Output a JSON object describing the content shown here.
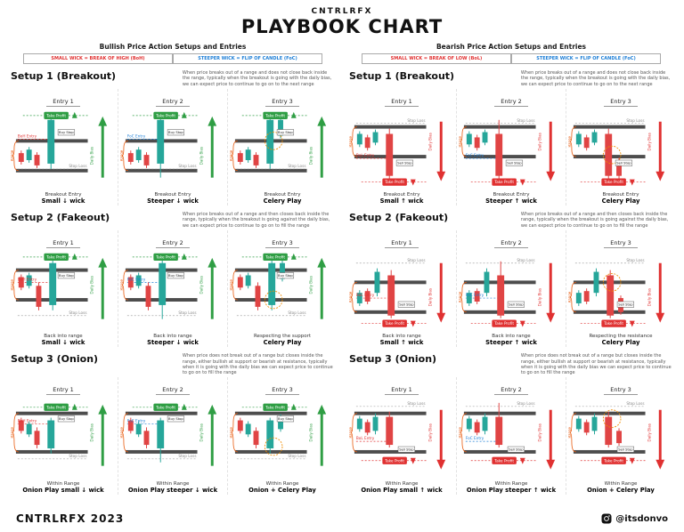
{
  "header": {
    "brand": "CNTRLRFX",
    "title": "PLAYBOOK CHART"
  },
  "footer": {
    "brand_year": "CNTRLRFX 2023",
    "handle": "@itsdonvo",
    "instagram_icon": "instagram"
  },
  "colors": {
    "bull_candle": "#26a69a",
    "bear_candle": "#e04444",
    "bull_accent": "#2f9e44",
    "bear_accent": "#e03131",
    "range_bar": "#4d4d4d",
    "range_label": "#e8590c",
    "foc_blue": "#1c7ed6",
    "stop_loss_gray": "#888888",
    "celery_orange": "#f08c00"
  },
  "columns": [
    {
      "id": "bullish",
      "title": "Bullish Price Action Setups and Entries",
      "legend": [
        {
          "text": "SMALL WICK = BREAK OF HIGH (BoH)",
          "color": "#e03131"
        },
        {
          "text": "STEEPER WICK = FLIP OF CANDLE (FoC)",
          "color": "#1c7ed6"
        }
      ],
      "setups": [
        {
          "title": "Setup 1 (Breakout)",
          "description": "When price breaks out of a range and does not close back inside the range, typically when the breakout is going with the daily bias, we can expect price to continue to go on to the next range",
          "entries": [
            {
              "label": "Entry 1",
              "variant": "small",
              "caption_top": "Breakout Entry",
              "caption_bottom": "Small ↓ wick",
              "annotations": {
                "take_profit": "Take Profit",
                "stop_loss": "Stop Loss",
                "entry": "BoH Entry",
                "entry_color": "#e03131",
                "stop_order": "Buy Stop",
                "range": "Range",
                "bias": "Daily Bias"
              }
            },
            {
              "label": "Entry 2",
              "variant": "steep",
              "caption_top": "Breakout Entry",
              "caption_bottom": "Steeper ↓ wick",
              "annotations": {
                "take_profit": "Take Profit",
                "stop_loss": "Stop Loss",
                "entry": "FoC Entry",
                "entry_color": "#1c7ed6",
                "stop_order": "Buy Stop",
                "range": "Range",
                "bias": "Daily Bias"
              }
            },
            {
              "label": "Entry 3",
              "variant": "celery",
              "caption_top": "Breakout Entry",
              "caption_bottom": "Celery Play",
              "annotations": {
                "take_profit": "Take Profit",
                "stop_loss": "Stop Loss",
                "entry": "",
                "entry_color": "",
                "stop_order": "Buy Stop",
                "range": "Range",
                "bias": "Daily Bias"
              }
            }
          ]
        },
        {
          "title": "Setup 2 (Fakeout)",
          "description": "When price breaks out of a range and then closes back inside the range, typically when the breakout is going against the daily bias, we can expect price to continue to go on to fill the range",
          "entries": [
            {
              "label": "Entry 1",
              "variant": "small",
              "caption_top": "Back into range",
              "caption_bottom": "Small ↓ wick",
              "annotations": {
                "take_profit": "Take Profit",
                "stop_loss": "Stop Loss",
                "entry": "BoH Entry",
                "entry_color": "#e03131",
                "stop_order": "Buy Stop",
                "range": "Range",
                "bias": "Daily Bias"
              }
            },
            {
              "label": "Entry 2",
              "variant": "steep",
              "caption_top": "Back into range",
              "caption_bottom": "Steeper ↓ wick",
              "annotations": {
                "take_profit": "Take Profit",
                "stop_loss": "Stop Loss",
                "entry": "FoC Entry",
                "entry_color": "#1c7ed6",
                "stop_order": "Buy Stop",
                "range": "Range",
                "bias": "Daily Bias"
              }
            },
            {
              "label": "Entry 3",
              "variant": "celery",
              "caption_top": "Respecting the support",
              "caption_bottom": "Celery Play",
              "annotations": {
                "take_profit": "Take Profit",
                "stop_loss": "Stop Loss",
                "entry": "",
                "entry_color": "",
                "stop_order": "Buy Stop",
                "range": "Range",
                "bias": "Daily Bias"
              }
            }
          ]
        },
        {
          "title": "Setup 3 (Onion)",
          "description": "When price does not break out of a range but closes inside the range, either bullish at support or bearish at resistance, typically when it is going with the daily bias we can expect price to continue to go on to fill the range",
          "entries": [
            {
              "label": "Entry 1",
              "variant": "small",
              "caption_top": "Within Range",
              "caption_bottom": "Onion Play small ↓ wick",
              "annotations": {
                "take_profit": "Take Profit",
                "stop_loss": "Stop Loss",
                "entry": "BoH Entry",
                "entry_color": "#e03131",
                "stop_order": "Buy Stop",
                "range": "Range",
                "bias": "Daily Bias"
              }
            },
            {
              "label": "Entry 2",
              "variant": "steep",
              "caption_top": "Within Range",
              "caption_bottom": "Onion Play steeper ↓ wick",
              "annotations": {
                "take_profit": "Take Profit",
                "stop_loss": "Stop Loss",
                "entry": "FoC Entry",
                "entry_color": "#1c7ed6",
                "stop_order": "Buy Stop",
                "range": "Range",
                "bias": "Daily Bias"
              }
            },
            {
              "label": "Entry 3",
              "variant": "celery",
              "caption_top": "Within Range",
              "caption_bottom": "Onion + Celery Play",
              "annotations": {
                "take_profit": "Take Profit",
                "stop_loss": "Stop Loss",
                "entry": "",
                "entry_color": "",
                "stop_order": "Buy Stop",
                "range": "Range",
                "bias": "Daily Bias"
              }
            }
          ]
        }
      ]
    },
    {
      "id": "bearish",
      "title": "Bearish Price Action Setups and Entries",
      "legend": [
        {
          "text": "SMALL WICK = BREAK OF LOW (BoL)",
          "color": "#e03131"
        },
        {
          "text": "STEEPER WICK = FLIP OF CANDLE (FoC)",
          "color": "#1c7ed6"
        }
      ],
      "setups": [
        {
          "title": "Setup 1 (Breakout)",
          "description": "When price breaks out of a range and does not close back inside the range, typically when the breakout is going with the daily bias, we can expect price to continue to go on to the next range",
          "entries": [
            {
              "label": "Entry 1",
              "variant": "small",
              "caption_top": "Breakout Entry",
              "caption_bottom": "Small ↑ wick",
              "annotations": {
                "take_profit": "Take Profit",
                "stop_loss": "Stop Loss",
                "entry": "BoL Entry",
                "entry_color": "#e03131",
                "stop_order": "Sell Stop",
                "range": "Range",
                "bias": "Daily Bias"
              }
            },
            {
              "label": "Entry 2",
              "variant": "steep",
              "caption_top": "Breakout Entry",
              "caption_bottom": "Steeper ↑ wick",
              "annotations": {
                "take_profit": "Take Profit",
                "stop_loss": "Stop Loss",
                "entry": "FoC Entry",
                "entry_color": "#1c7ed6",
                "stop_order": "Sell Stop",
                "range": "Range",
                "bias": "Daily Bias"
              }
            },
            {
              "label": "Entry 3",
              "variant": "celery",
              "caption_top": "Breakout Entry",
              "caption_bottom": "Celery Play",
              "annotations": {
                "take_profit": "Take Profit",
                "stop_loss": "Stop Loss",
                "entry": "",
                "entry_color": "",
                "stop_order": "Sell Stop",
                "range": "Range",
                "bias": "Daily Bias"
              }
            }
          ]
        },
        {
          "title": "Setup 2 (Fakeout)",
          "description": "When price breaks out of a range and then closes back inside the range, typically when the breakout is going against the daily bias, we can expect price to continue to go on to fill the range",
          "entries": [
            {
              "label": "Entry 1",
              "variant": "small",
              "caption_top": "Back into range",
              "caption_bottom": "Small ↑ wick",
              "annotations": {
                "take_profit": "Take Profit",
                "stop_loss": "Stop Loss",
                "entry": "BoL Entry",
                "entry_color": "#e03131",
                "stop_order": "Sell Stop",
                "range": "Range",
                "bias": "Daily Bias"
              }
            },
            {
              "label": "Entry 2",
              "variant": "steep",
              "caption_top": "Back into range",
              "caption_bottom": "Steeper ↑ wick",
              "annotations": {
                "take_profit": "Take Profit",
                "stop_loss": "Stop Loss",
                "entry": "FoC Entry",
                "entry_color": "#1c7ed6",
                "stop_order": "Sell Stop",
                "range": "Range",
                "bias": "Daily Bias"
              }
            },
            {
              "label": "Entry 3",
              "variant": "celery",
              "caption_top": "Respecting the resistance",
              "caption_bottom": "Celery Play",
              "annotations": {
                "take_profit": "Take Profit",
                "stop_loss": "Stop Loss",
                "entry": "",
                "entry_color": "",
                "stop_order": "Sell Stop",
                "range": "Range",
                "bias": "Daily Bias"
              }
            }
          ]
        },
        {
          "title": "Setup 3 (Onion)",
          "description": "When price does not break out of a range but closes inside the range, either bullish at support or bearish at resistance, typically when it is going with the daily bias we can expect price to continue to go on to fill the range",
          "entries": [
            {
              "label": "Entry 1",
              "variant": "small",
              "caption_top": "Within Range",
              "caption_bottom": "Onion Play small ↑ wick",
              "annotations": {
                "take_profit": "Take Profit",
                "stop_loss": "Stop Loss",
                "entry": "BoL Entry",
                "entry_color": "#e03131",
                "stop_order": "Sell Stop",
                "range": "Range",
                "bias": "Daily Bias"
              }
            },
            {
              "label": "Entry 2",
              "variant": "steep",
              "caption_top": "Within Range",
              "caption_bottom": "Onion Play steeper ↑ wick",
              "annotations": {
                "take_profit": "Take Profit",
                "stop_loss": "Stop Loss",
                "entry": "FoC Entry",
                "entry_color": "#1c7ed6",
                "stop_order": "Sell Stop",
                "range": "Range",
                "bias": "Daily Bias"
              }
            },
            {
              "label": "Entry 3",
              "variant": "celery",
              "caption_top": "Within Range",
              "caption_bottom": "Onion + Celery Play",
              "annotations": {
                "take_profit": "Take Profit",
                "stop_loss": "Stop Loss",
                "entry": "",
                "entry_color": "",
                "stop_order": "Sell Stop",
                "range": "Range",
                "bias": "Daily Bias"
              }
            }
          ]
        }
      ]
    }
  ]
}
